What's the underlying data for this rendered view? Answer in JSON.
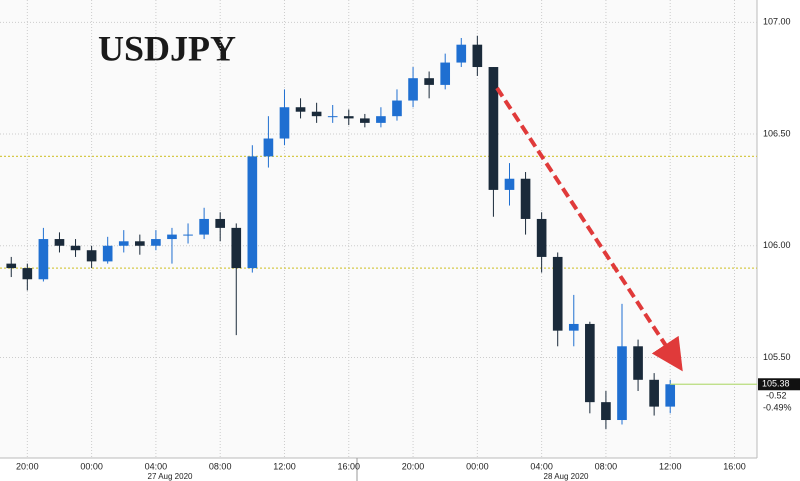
{
  "chart_data": {
    "type": "candlestick",
    "title": "USDJPY",
    "x": [
      -1,
      0,
      1,
      2,
      3,
      4,
      5,
      6,
      7,
      8,
      9,
      10,
      11,
      12,
      13,
      14,
      15,
      16,
      17,
      18,
      19,
      20,
      21,
      22,
      23,
      24,
      25,
      26,
      27,
      28,
      29,
      30,
      31,
      32,
      33,
      34,
      35,
      36,
      37,
      38,
      39,
      40
    ],
    "open": [
      105.92,
      105.9,
      105.85,
      106.03,
      106.0,
      105.98,
      105.93,
      106.0,
      106.02,
      106.0,
      106.03,
      106.05,
      106.05,
      106.12,
      106.08,
      105.9,
      106.4,
      106.48,
      106.62,
      106.6,
      106.58,
      106.58,
      106.57,
      106.55,
      106.58,
      106.65,
      106.75,
      106.72,
      106.82,
      106.9,
      106.8,
      106.25,
      106.3,
      106.12,
      105.95,
      105.62,
      105.65,
      105.3,
      105.22,
      105.55,
      105.4,
      105.28
    ],
    "high": [
      105.95,
      105.92,
      106.08,
      106.06,
      106.03,
      106.0,
      106.04,
      106.07,
      106.05,
      106.07,
      106.08,
      106.1,
      106.17,
      106.15,
      106.1,
      106.45,
      106.58,
      106.7,
      106.66,
      106.64,
      106.63,
      106.61,
      106.59,
      106.62,
      106.7,
      106.8,
      106.78,
      106.86,
      106.93,
      106.94,
      106.8,
      106.37,
      106.33,
      106.15,
      105.97,
      105.78,
      105.66,
      105.35,
      105.74,
      105.58,
      105.43,
      105.4
    ],
    "low": [
      105.86,
      105.8,
      105.84,
      105.97,
      105.95,
      105.9,
      105.92,
      105.97,
      105.96,
      105.98,
      105.92,
      106.01,
      106.03,
      106.02,
      105.6,
      105.88,
      106.35,
      106.45,
      106.57,
      106.55,
      106.55,
      106.54,
      106.53,
      106.53,
      106.56,
      106.62,
      106.66,
      106.7,
      106.8,
      106.76,
      106.13,
      106.18,
      106.05,
      105.88,
      105.55,
      105.55,
      105.25,
      105.18,
      105.2,
      105.35,
      105.24,
      105.25
    ],
    "close": [
      105.9,
      105.85,
      106.03,
      106.0,
      105.98,
      105.93,
      106.0,
      106.02,
      106.0,
      106.03,
      106.05,
      106.05,
      106.12,
      106.08,
      105.9,
      106.4,
      106.48,
      106.62,
      106.6,
      106.58,
      106.58,
      106.57,
      106.55,
      106.58,
      106.65,
      106.75,
      106.72,
      106.82,
      106.9,
      106.8,
      106.25,
      106.3,
      106.12,
      105.95,
      105.62,
      105.65,
      105.3,
      105.22,
      105.55,
      105.4,
      105.28,
      105.38
    ],
    "up_color": "#1f6fd1",
    "down_color": "#1a2a3a",
    "xlim": [
      -1.7,
      45.4
    ],
    "xticks": [
      {
        "value": 0,
        "label": "20:00"
      },
      {
        "value": 4,
        "label": "00:00"
      },
      {
        "value": 8,
        "label": "04:00"
      },
      {
        "value": 12,
        "label": "08:00"
      },
      {
        "value": 16,
        "label": "12:00"
      },
      {
        "value": 20,
        "label": "16:00"
      },
      {
        "value": 24,
        "label": "20:00"
      },
      {
        "value": 28,
        "label": "00:00"
      },
      {
        "value": 32,
        "label": "04:00"
      },
      {
        "value": 36,
        "label": "08:00"
      },
      {
        "value": 40,
        "label": "12:00"
      },
      {
        "value": 44,
        "label": "16:00"
      }
    ],
    "date_labels": [
      "27 Aug 2020",
      "28 Aug 2020"
    ],
    "ylim": [
      105.05,
      107.1
    ],
    "yticks": [
      {
        "value": 105.5,
        "label": "105.50"
      },
      {
        "value": 106,
        "label": "106.00"
      },
      {
        "value": 106.5,
        "label": "106.50"
      },
      {
        "value": 107,
        "label": "107.00"
      }
    ],
    "reference_lines": [
      106.4,
      105.9
    ],
    "reference_color": "#d6c94a",
    "last_price": {
      "value": 105.38,
      "label": "105.38"
    },
    "last_color": "#b8dc7c",
    "change": "-0.52",
    "change_pct": "-0.49%"
  }
}
